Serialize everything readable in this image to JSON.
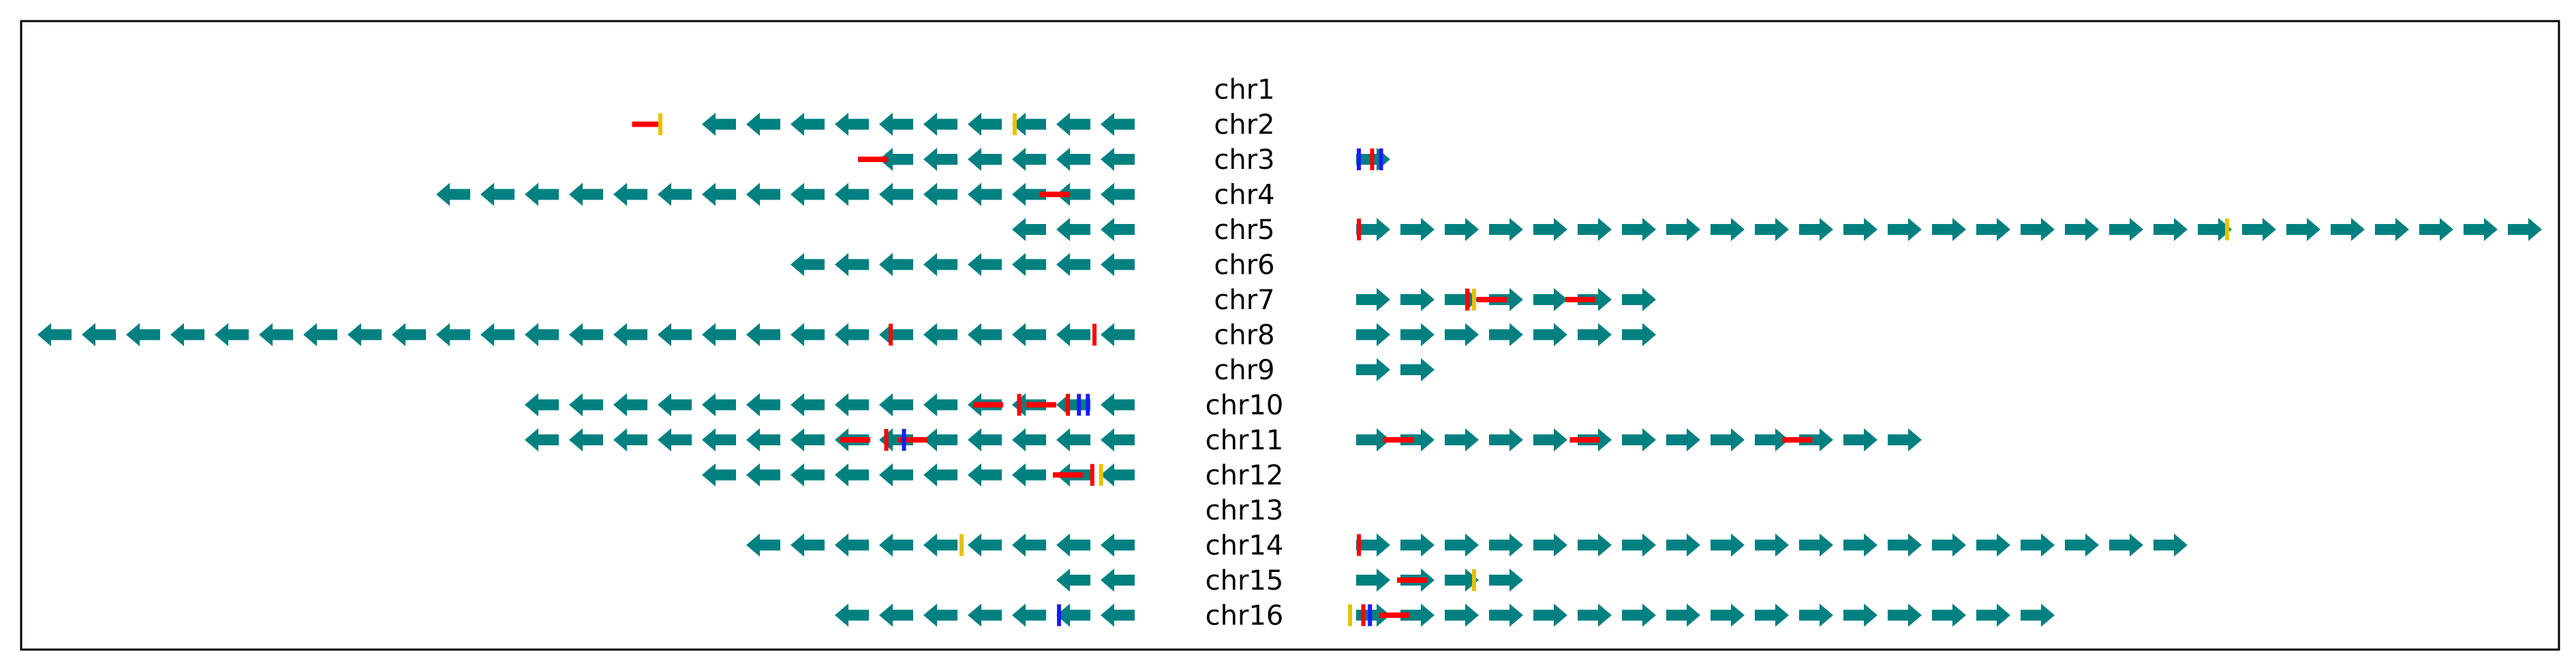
{
  "colors": {
    "arrow": "#008080",
    "red_mark": "#ff0000",
    "yellow_mark": "#e6c200",
    "blue_mark": "#1a1aff",
    "frame": "#000000"
  },
  "chromosomes": [
    {
      "label": "chr1",
      "left": {
        "arrows": 0,
        "marks": []
      },
      "right": {
        "arrows": 0,
        "marks": []
      }
    },
    {
      "label": "chr2",
      "left": {
        "arrows": 10,
        "marks": [
          {
            "type": "line",
            "color": "red",
            "at": 10.3
          },
          {
            "type": "bar",
            "color": "yellow",
            "at": 10.0
          },
          {
            "type": "bar",
            "color": "yellow",
            "at": 2.0
          }
        ]
      },
      "right": {
        "arrows": 0,
        "marks": []
      }
    },
    {
      "label": "chr3",
      "left": {
        "arrows": 6,
        "marks": [
          {
            "type": "line",
            "color": "red",
            "at": 5.2
          }
        ]
      },
      "right": {
        "arrows": 1,
        "marks": [
          {
            "type": "bar",
            "color": "blue",
            "at": 0.0
          },
          {
            "type": "bar",
            "color": "red",
            "at": 0.3
          },
          {
            "type": "bar",
            "color": "blue",
            "at": 0.5
          }
        ]
      }
    },
    {
      "label": "chr4",
      "left": {
        "arrows": 16,
        "marks": [
          {
            "type": "line",
            "color": "red",
            "at": 1.1
          }
        ]
      },
      "right": {
        "arrows": 0,
        "marks": []
      }
    },
    {
      "label": "chr5",
      "left": {
        "arrows": 3,
        "marks": []
      },
      "right": {
        "arrows": 27,
        "marks": [
          {
            "type": "bar",
            "color": "red",
            "at": 0.0
          },
          {
            "type": "bar",
            "color": "yellow",
            "at": 19.6
          }
        ]
      }
    },
    {
      "label": "chr6",
      "left": {
        "arrows": 8,
        "marks": []
      },
      "right": {
        "arrows": 0,
        "marks": []
      }
    },
    {
      "label": "chr7",
      "left": {
        "arrows": 0,
        "marks": []
      },
      "right": {
        "arrows": 7,
        "marks": [
          {
            "type": "bar",
            "color": "red",
            "at": 2.45
          },
          {
            "type": "bar",
            "color": "yellow",
            "at": 2.6
          },
          {
            "type": "line",
            "color": "red",
            "at": 3.0
          },
          {
            "type": "line",
            "color": "red",
            "at": 5.0
          }
        ]
      }
    },
    {
      "label": "chr8",
      "left": {
        "arrows": 25,
        "marks": [
          {
            "type": "bar",
            "color": "red",
            "at": 0.2
          },
          {
            "type": "bar",
            "color": "red",
            "at": 4.8
          }
        ]
      },
      "right": {
        "arrows": 7,
        "marks": []
      }
    },
    {
      "label": "chr9",
      "left": {
        "arrows": 0,
        "marks": []
      },
      "right": {
        "arrows": 2,
        "marks": []
      }
    },
    {
      "label": "chr10",
      "left": {
        "arrows": 14,
        "marks": [
          {
            "type": "bar",
            "color": "blue",
            "at": 0.35
          },
          {
            "type": "bar",
            "color": "blue",
            "at": 0.55
          },
          {
            "type": "bar",
            "color": "red",
            "at": 0.8
          },
          {
            "type": "line",
            "color": "red",
            "at": 1.4
          },
          {
            "type": "bar",
            "color": "red",
            "at": 1.9
          },
          {
            "type": "line",
            "color": "red",
            "at": 2.6
          }
        ]
      },
      "right": {
        "arrows": 0,
        "marks": []
      }
    },
    {
      "label": "chr11",
      "left": {
        "arrows": 14,
        "marks": [
          {
            "type": "line",
            "color": "red",
            "at": 4.3
          },
          {
            "type": "bar",
            "color": "red",
            "at": 4.9
          },
          {
            "type": "bar",
            "color": "blue",
            "at": 4.5
          },
          {
            "type": "line",
            "color": "red",
            "at": 5.6
          }
        ]
      },
      "right": {
        "arrows": 13,
        "marks": [
          {
            "type": "line",
            "color": "red",
            "at": 0.9
          },
          {
            "type": "line",
            "color": "red",
            "at": 5.1
          },
          {
            "type": "line",
            "color": "red",
            "at": 9.9
          }
        ]
      }
    },
    {
      "label": "chr12",
      "left": {
        "arrows": 10,
        "marks": [
          {
            "type": "bar",
            "color": "yellow",
            "at": 0.05
          },
          {
            "type": "bar",
            "color": "red",
            "at": 0.25
          },
          {
            "type": "line",
            "color": "red",
            "at": 0.8
          }
        ]
      },
      "right": {
        "arrows": 0,
        "marks": []
      }
    },
    {
      "label": "chr13",
      "left": {
        "arrows": 0,
        "marks": []
      },
      "right": {
        "arrows": 0,
        "marks": []
      }
    },
    {
      "label": "chr14",
      "left": {
        "arrows": 9,
        "marks": [
          {
            "type": "bar",
            "color": "yellow",
            "at": 3.2
          }
        ]
      },
      "right": {
        "arrows": 19,
        "marks": [
          {
            "type": "bar",
            "color": "red",
            "at": 0.0
          }
        ]
      }
    },
    {
      "label": "chr15",
      "left": {
        "arrows": 2,
        "marks": []
      },
      "right": {
        "arrows": 4,
        "marks": [
          {
            "type": "line",
            "color": "red",
            "at": 1.2
          },
          {
            "type": "bar",
            "color": "yellow",
            "at": 2.6
          }
        ]
      }
    },
    {
      "label": "chr16",
      "left": {
        "arrows": 7,
        "marks": [
          {
            "type": "bar",
            "color": "blue",
            "at": 1.0
          }
        ]
      },
      "right": {
        "arrows": 16,
        "marks": [
          {
            "type": "bar",
            "color": "yellow",
            "at": -0.2
          },
          {
            "type": "bar",
            "color": "red",
            "at": 0.1
          },
          {
            "type": "bar",
            "color": "blue",
            "at": 0.25
          },
          {
            "type": "line",
            "color": "red",
            "at": 0.8
          }
        ]
      }
    }
  ]
}
